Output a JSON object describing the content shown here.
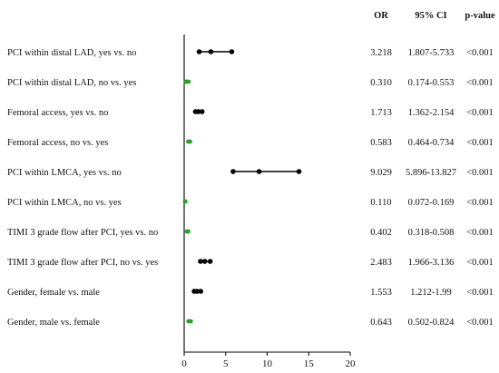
{
  "chart_data": {
    "type": "forest",
    "title": "",
    "xlabel": "",
    "ylabel": "",
    "xlim": [
      0,
      20
    ],
    "x_ticks": [
      "0",
      "5",
      "10",
      "15",
      "20"
    ],
    "headers": {
      "or": "OR",
      "ci": "95% CI",
      "p": "p-value"
    },
    "colors": {
      "or_above_1": "#000000",
      "or_below_1": "#2ca02c"
    },
    "rows": [
      {
        "label": "PCI within distal LAD, yes vs. no",
        "or": 3.218,
        "lower": 1.807,
        "upper": 5.733,
        "or_text": "3.218",
        "ci_text": "1.807-5.733",
        "p_text": "<0.001"
      },
      {
        "label": "PCI within distal LAD, no vs. yes",
        "or": 0.31,
        "lower": 0.174,
        "upper": 0.553,
        "or_text": "0.310",
        "ci_text": "0.174-0.553",
        "p_text": "<0.001"
      },
      {
        "label": "Femoral access, yes vs. no",
        "or": 1.713,
        "lower": 1.362,
        "upper": 2.154,
        "or_text": "1.713",
        "ci_text": "1.362-2.154",
        "p_text": "<0.001"
      },
      {
        "label": "Femoral access, no vs. yes",
        "or": 0.583,
        "lower": 0.464,
        "upper": 0.734,
        "or_text": "0.583",
        "ci_text": "0.464-0.734",
        "p_text": "<0.001"
      },
      {
        "label": "PCI within LMCA, yes vs. no",
        "or": 9.029,
        "lower": 5.896,
        "upper": 13.827,
        "or_text": "9.029",
        "ci_text": "5.896-13.827",
        "p_text": "<0.001"
      },
      {
        "label": "PCI within LMCA, no vs. yes",
        "or": 0.11,
        "lower": 0.072,
        "upper": 0.169,
        "or_text": "0.110",
        "ci_text": "0.072-0.169",
        "p_text": "<0.001"
      },
      {
        "label": "TIMI 3 grade flow after PCI, yes vs. no",
        "or": 0.402,
        "lower": 0.318,
        "upper": 0.508,
        "or_text": "0.402",
        "ci_text": "0.318-0.508",
        "p_text": "<0.001"
      },
      {
        "label": "TIMI 3 grade flow after PCI, no vs. yes",
        "or": 2.483,
        "lower": 1.966,
        "upper": 3.136,
        "or_text": "2.483",
        "ci_text": "1.966-3.136",
        "p_text": "<0.001"
      },
      {
        "label": "Gender, female vs. male",
        "or": 1.553,
        "lower": 1.212,
        "upper": 1.99,
        "or_text": "1.553",
        "ci_text": "1.212-1.99",
        "p_text": "<0.001"
      },
      {
        "label": "Gender, male vs. female",
        "or": 0.643,
        "lower": 0.502,
        "upper": 0.824,
        "or_text": "0.643",
        "ci_text": "0.502-0.824",
        "p_text": "<0.001"
      }
    ]
  }
}
